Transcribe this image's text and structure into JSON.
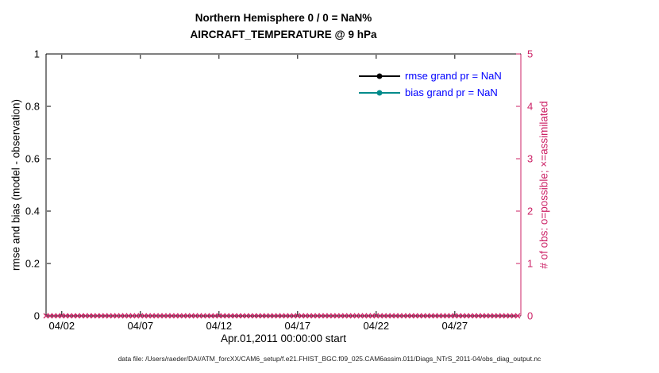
{
  "title": {
    "line1": "Northern Hemisphere 0 / 0 = NaN%",
    "line2": "AIRCRAFT_TEMPERATURE @ 9 hPa"
  },
  "footer": "data file: /Users/raeder/DAI/ATM_forcXX/CAM6_setup/f.e21.FHIST_BGC.f09_025.CAM6assim.011/Diags_NTrS_2011-04/obs_diag_output.nc",
  "colors": {
    "left_axis": "#000000",
    "right_axis": "#cc2266",
    "legend_text": "#0000ff",
    "rmse_series": "#000000",
    "bias_series": "#008b8b",
    "background": "#ffffff"
  },
  "legend": [
    {
      "label": "rmse grand pr = NaN",
      "color": "#000000"
    },
    {
      "label": "bias grand pr = NaN",
      "color": "#008b8b"
    }
  ],
  "chart_data": {
    "type": "line",
    "title": "Northern Hemisphere 0 / 0 = NaN%",
    "subtitle": "AIRCRAFT_TEMPERATURE @ 9 hPa",
    "xlabel": "Apr.01,2011 00:00:00 start",
    "ylabel_left": "rmse and bias (model - observation)",
    "ylabel_right": "# of obs: o=possible; ×=assimilated",
    "grid": false,
    "legend_position": "upper right inside",
    "ylim_left": [
      0,
      1
    ],
    "yticks_left": [
      {
        "value": 0,
        "label": "0"
      },
      {
        "value": 0.2,
        "label": "0.2"
      },
      {
        "value": 0.4,
        "label": "0.4"
      },
      {
        "value": 0.6,
        "label": "0.6"
      },
      {
        "value": 0.8,
        "label": "0.8"
      },
      {
        "value": 1,
        "label": "1"
      }
    ],
    "ylim_right": [
      0,
      5
    ],
    "yticks_right": [
      {
        "value": 0,
        "label": "0"
      },
      {
        "value": 1,
        "label": "1"
      },
      {
        "value": 2,
        "label": "2"
      },
      {
        "value": 3,
        "label": "3"
      },
      {
        "value": 4,
        "label": "4"
      },
      {
        "value": 5,
        "label": "5"
      }
    ],
    "xlim_days": [
      1,
      31.2
    ],
    "xticks": [
      {
        "day": 2,
        "label": "04/02"
      },
      {
        "day": 7,
        "label": "04/07"
      },
      {
        "day": 12,
        "label": "04/12"
      },
      {
        "day": 17,
        "label": "04/17"
      },
      {
        "day": 22,
        "label": "04/22"
      },
      {
        "day": 27,
        "label": "04/27"
      }
    ],
    "series": [
      {
        "name": "rmse grand pr = NaN",
        "color": "#000000",
        "values": []
      },
      {
        "name": "bias grand pr = NaN",
        "color": "#008b8b",
        "values": []
      }
    ],
    "obs_markers": {
      "possible_symbol": "o",
      "assimilated_symbol": "x",
      "y": 0,
      "start_day": 1,
      "end_day": 31.2,
      "interval_days": 0.25
    }
  }
}
